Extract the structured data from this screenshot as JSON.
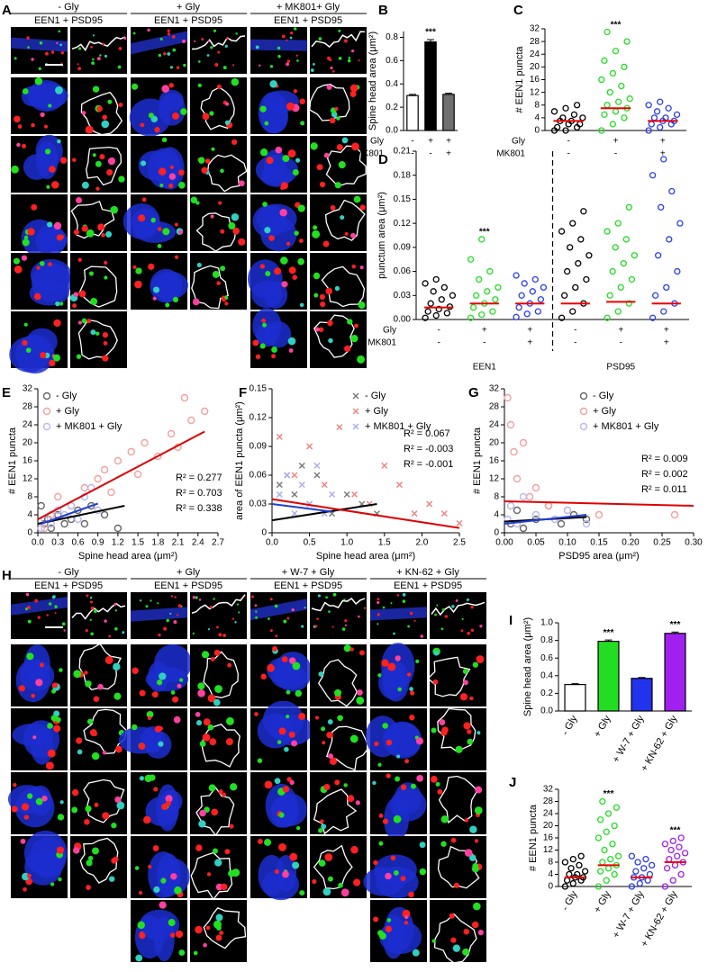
{
  "panels": {
    "A": {
      "letter": "A",
      "groups": [
        {
          "condition": "- Gly",
          "stain": "EEN1 + PSD95"
        },
        {
          "condition": "+ Gly",
          "stain": "EEN1 + PSD95"
        },
        {
          "condition": "+ MK801+ Gly",
          "stain": "EEN1 + PSD95"
        }
      ]
    },
    "H": {
      "letter": "H",
      "groups": [
        {
          "condition": "- Gly",
          "stain": "EEN1 + PSD95"
        },
        {
          "condition": "+ Gly",
          "stain": "EEN1 + PSD95"
        },
        {
          "condition": "+ W-7 + Gly",
          "stain": "EEN1 + PSD95"
        },
        {
          "condition": "+ KN-62 + Gly",
          "stain": "EEN1 + PSD95"
        }
      ]
    }
  },
  "chart_data": [
    {
      "type": "bar",
      "letter": "B",
      "ylabel": "Spine head area (μm²)",
      "values": [
        0.3,
        0.76,
        0.31
      ],
      "errors": [
        0.01,
        0.02,
        0.01
      ],
      "colors": [
        "#ffffff",
        "#000000",
        "#707070"
      ],
      "ylim": [
        0,
        0.85
      ],
      "yticks": [
        {
          "value": 0,
          "label": "0.0"
        },
        0.2,
        0.4,
        0.6,
        0.8
      ],
      "conditions": [
        {
          "label": "Gly",
          "values": [
            "-",
            "+",
            "+"
          ]
        },
        {
          "label": "MK801",
          "values": [
            "-",
            "-",
            "+"
          ]
        }
      ],
      "significance": [
        {
          "index": 1,
          "text": "***"
        }
      ]
    },
    {
      "type": "strip",
      "letter": "C",
      "ylabel": "# EEN1 puncta",
      "series": [
        {
          "color": "#000000",
          "mean": 3,
          "values": [
            0,
            0,
            1,
            1,
            2,
            2,
            3,
            3,
            4,
            4,
            5,
            6,
            7,
            8
          ]
        },
        {
          "color": "#22dd22",
          "mean": 7,
          "values": [
            0,
            2,
            4,
            5,
            6,
            7,
            8,
            9,
            10,
            12,
            14,
            16,
            18,
            20,
            22,
            25,
            28,
            31
          ]
        },
        {
          "color": "#2a3ee8",
          "mean": 3,
          "values": [
            0,
            1,
            2,
            2,
            3,
            3,
            4,
            4,
            5,
            6,
            7,
            8,
            9
          ]
        }
      ],
      "mean_color": "#ee0000",
      "ylim": [
        0,
        32
      ],
      "yticks": [
        0,
        4,
        8,
        12,
        16,
        20,
        24,
        28,
        32
      ],
      "conditions": [
        {
          "label": "Gly",
          "values": [
            "-",
            "+",
            "+"
          ]
        },
        {
          "label": "MK801",
          "values": [
            "-",
            "-",
            "+"
          ]
        }
      ],
      "significance": [
        {
          "index": 1,
          "text": "***"
        }
      ]
    },
    {
      "type": "strip",
      "letter": "D",
      "ylabel": "punctum area (μm²)",
      "series": [
        {
          "color": "#000000",
          "mean": 0.015,
          "values": [
            0.002,
            0.005,
            0.008,
            0.01,
            0.013,
            0.016,
            0.02,
            0.025,
            0.03,
            0.035,
            0.04,
            0.045,
            0.05
          ]
        },
        {
          "color": "#22dd22",
          "mean": 0.02,
          "values": [
            0.002,
            0.006,
            0.01,
            0.015,
            0.02,
            0.025,
            0.03,
            0.035,
            0.04,
            0.05,
            0.06,
            0.075,
            0.1
          ]
        },
        {
          "color": "#2a3ee8",
          "mean": 0.02,
          "values": [
            0.003,
            0.007,
            0.01,
            0.015,
            0.02,
            0.025,
            0.03,
            0.035,
            0.04,
            0.045,
            0.05,
            0.055
          ]
        },
        {
          "color": "#000000",
          "mean": 0.02,
          "values": [
            0.002,
            0.01,
            0.02,
            0.03,
            0.04,
            0.05,
            0.06,
            0.07,
            0.08,
            0.09,
            0.1,
            0.11,
            0.12,
            0.135
          ]
        },
        {
          "color": "#22dd22",
          "mean": 0.022,
          "values": [
            0.002,
            0.01,
            0.02,
            0.03,
            0.04,
            0.05,
            0.06,
            0.07,
            0.08,
            0.09,
            0.1,
            0.11,
            0.12,
            0.14
          ]
        },
        {
          "color": "#2a3ee8",
          "mean": 0.02,
          "values": [
            0.002,
            0.01,
            0.02,
            0.03,
            0.04,
            0.06,
            0.08,
            0.1,
            0.12,
            0.14,
            0.16,
            0.18,
            0.2
          ]
        }
      ],
      "mean_color": "#ee0000",
      "ylim": [
        0,
        0.21
      ],
      "yticks": [
        {
          "value": 0,
          "label": "0.00"
        },
        0.03,
        0.06,
        0.09,
        0.12,
        0.15,
        0.18,
        0.21
      ],
      "conditions": [
        {
          "label": "Gly",
          "values": [
            "-",
            "+",
            "+",
            "-",
            "+",
            "+"
          ]
        },
        {
          "label": "MK801",
          "values": [
            "-",
            "-",
            "+",
            "-",
            "-",
            "+"
          ]
        }
      ],
      "groups": [
        {
          "label": "EEN1",
          "span": [
            0,
            2
          ]
        },
        {
          "label": "PSD95",
          "span": [
            3,
            5
          ]
        }
      ],
      "divider_after": 2,
      "significance": [
        {
          "index": 1,
          "text": "***"
        }
      ]
    },
    {
      "type": "scatter",
      "letter": "E",
      "ylabel": "# EEN1 puncta",
      "xlabel": "Spine head area (μm²)",
      "series": [
        {
          "name": "- Gly",
          "color": "#666666",
          "marker": "o",
          "fit_color": "#000000",
          "x": [
            0.05,
            0.1,
            0.15,
            0.2,
            0.3,
            0.4,
            0.5,
            0.6,
            0.7,
            0.8,
            1.0,
            1.2
          ],
          "y": [
            6,
            2,
            3,
            1,
            4,
            2,
            3,
            5,
            2,
            6,
            4,
            1
          ],
          "fit": {
            "x": [
              0,
              1.3
            ],
            "y": [
              2,
              6
            ]
          }
        },
        {
          "name": "+ Gly",
          "color": "#f4a0a0",
          "marker": "o",
          "fit_color": "#dd0000",
          "x": [
            0.1,
            0.2,
            0.3,
            0.5,
            0.7,
            0.9,
            1.0,
            1.1,
            1.2,
            1.4,
            1.5,
            1.6,
            1.8,
            2.0,
            2.1,
            2.2,
            2.3,
            2.5
          ],
          "y": [
            1,
            4,
            8,
            6,
            10,
            12,
            14,
            9,
            16,
            18,
            13,
            20,
            17,
            22,
            19,
            30,
            25,
            27
          ],
          "fit": {
            "x": [
              0,
              2.5
            ],
            "y": [
              3,
              22.5
            ]
          }
        },
        {
          "name": "+ MK801 + Gly",
          "color": "#b8b8f0",
          "marker": "o",
          "fit_color": "#1f3fd8",
          "x": [
            0.05,
            0.1,
            0.2,
            0.3,
            0.4,
            0.5,
            0.6,
            0.7,
            0.8,
            0.9
          ],
          "y": [
            1,
            3,
            2,
            5,
            4,
            6,
            3,
            8,
            10,
            5
          ],
          "fit": {
            "x": [
              0.05,
              0.9
            ],
            "y": [
              2,
              6.5
            ]
          }
        }
      ],
      "annotations": [
        {
          "text": "R² = 0.277",
          "color": "#000000"
        },
        {
          "text": "R² = 0.703",
          "color": "#ff0000"
        },
        {
          "text": "R² = 0.338",
          "color": "#0000ff"
        }
      ],
      "xlim": [
        0,
        2.7
      ],
      "xticks": [
        {
          "value": 0,
          "label": "0.0"
        },
        0.3,
        0.6,
        0.9,
        1.2,
        1.5,
        1.8,
        2.1,
        2.4,
        2.7
      ],
      "ylim": [
        0,
        32
      ],
      "yticks": [
        0,
        4,
        8,
        12,
        16,
        20,
        24,
        28,
        32
      ]
    },
    {
      "type": "scatter",
      "letter": "F",
      "ylabel": "area of EEN1 puncta (μm²)",
      "xlabel": "Spine head area (μm²)",
      "series": [
        {
          "name": "- Gly",
          "color": "#777777",
          "marker": "x",
          "fit_color": "#000000",
          "x": [
            0.1,
            0.2,
            0.3,
            0.4,
            0.5,
            0.6,
            0.8,
            1.0,
            1.2,
            1.4
          ],
          "y": [
            0.05,
            0.06,
            0.04,
            0.07,
            0.03,
            0.06,
            0.02,
            0.04,
            0.03,
            0.02
          ],
          "fit": {
            "x": [
              0,
              1.4
            ],
            "y": [
              0.013,
              0.03
            ]
          }
        },
        {
          "name": "+ Gly",
          "color": "#f08080",
          "marker": "x",
          "fit_color": "#dd0000",
          "x": [
            0.1,
            0.3,
            0.5,
            0.7,
            0.9,
            1.1,
            1.3,
            1.5,
            1.7,
            1.9,
            2.1,
            2.3,
            2.5
          ],
          "y": [
            0.1,
            0.06,
            0.09,
            0.05,
            0.11,
            0.04,
            0.03,
            0.07,
            0.05,
            0.02,
            0.03,
            0.02,
            0.01
          ],
          "fit": {
            "x": [
              0,
              2.5
            ],
            "y": [
              0.035,
              0.005
            ]
          }
        },
        {
          "name": "+ MK801 + Gly",
          "color": "#a8a8f0",
          "marker": "x",
          "fit_color": "#1f3fd8",
          "x": [
            0.1,
            0.2,
            0.3,
            0.4,
            0.5,
            0.6,
            0.7,
            0.8
          ],
          "y": [
            0.04,
            0.06,
            0.02,
            0.05,
            0.03,
            0.07,
            0.02,
            0.04
          ],
          "fit": {
            "x": [
              0,
              0.8
            ],
            "y": [
              0.03,
              0.022
            ]
          }
        }
      ],
      "annotations": [
        {
          "text": "R² = 0.067",
          "color": "#000000"
        },
        {
          "text": "R² = -0.003",
          "color": "#ff0000"
        },
        {
          "text": "R² = -0.001",
          "color": "#0000ff"
        }
      ],
      "xlim": [
        0,
        2.5
      ],
      "xticks": [
        {
          "value": 0,
          "label": "0.0"
        },
        0.5,
        {
          "value": 1,
          "label": "1.0"
        },
        1.5,
        {
          "value": 2,
          "label": "2.0"
        },
        2.5
      ],
      "ylim": [
        0,
        0.15
      ],
      "yticks": [
        0,
        0.03,
        0.06,
        0.09,
        0.12,
        0.15
      ]
    },
    {
      "type": "scatter",
      "letter": "G",
      "ylabel": "# EEN1 puncta",
      "xlabel": "PSD95 area (μm²)",
      "series": [
        {
          "name": "- Gly",
          "color": "#666666",
          "marker": "o",
          "fit_color": "#000000",
          "x": [
            0.01,
            0.02,
            0.03,
            0.05,
            0.07,
            0.09,
            0.11,
            0.13
          ],
          "y": [
            2,
            5,
            1,
            3,
            6,
            2,
            4,
            3
          ],
          "fit": {
            "x": [
              0,
              0.13
            ],
            "y": [
              2.5,
              3.5
            ]
          }
        },
        {
          "name": "+ Gly",
          "color": "#f4a0a0",
          "marker": "o",
          "fit_color": "#dd0000",
          "x": [
            0.005,
            0.01,
            0.015,
            0.02,
            0.03,
            0.04,
            0.05,
            0.07,
            0.1,
            0.15,
            0.27
          ],
          "y": [
            30,
            24,
            18,
            12,
            20,
            8,
            10,
            6,
            5,
            4,
            4
          ],
          "fit": {
            "x": [
              0,
              0.3
            ],
            "y": [
              7,
              6
            ]
          }
        },
        {
          "name": "+ MK801 + Gly",
          "color": "#b8b8f0",
          "marker": "o",
          "fit_color": "#1f3fd8",
          "x": [
            0.005,
            0.01,
            0.02,
            0.03,
            0.05,
            0.08,
            0.1,
            0.13
          ],
          "y": [
            3,
            6,
            2,
            8,
            4,
            3,
            5,
            2
          ],
          "fit": {
            "x": [
              0,
              0.13
            ],
            "y": [
              2,
              4
            ]
          }
        }
      ],
      "annotations": [
        {
          "text": "R² = 0.009",
          "color": "#000000"
        },
        {
          "text": "R² = 0.002",
          "color": "#ff0000"
        },
        {
          "text": "R² = 0.011",
          "color": "#0000ff"
        }
      ],
      "xlim": [
        0,
        0.3
      ],
      "xticks": [
        {
          "value": 0,
          "label": "0.00"
        },
        0.05,
        {
          "value": 0.1,
          "label": "0.10"
        },
        0.15,
        {
          "value": 0.2,
          "label": "0.20"
        },
        0.25,
        {
          "value": 0.3,
          "label": "0.30"
        }
      ],
      "ylim": [
        0,
        32
      ],
      "yticks": [
        0,
        4,
        8,
        12,
        16,
        20,
        24,
        28,
        32
      ]
    },
    {
      "type": "bar",
      "letter": "I",
      "ylabel": "Spine head area (μm²)",
      "categories": [
        "- Gly",
        "+ Gly",
        "+ W-7 + Gly",
        "+ KN-62 + Gly"
      ],
      "values": [
        0.3,
        0.79,
        0.37,
        0.88
      ],
      "errors": [
        0.01,
        0.015,
        0.01,
        0.015
      ],
      "colors": [
        "#ffffff",
        "#22dd22",
        "#2233ee",
        "#a020f0"
      ],
      "ylim": [
        0,
        1.0
      ],
      "yticks": [
        {
          "value": 0,
          "label": "0.0"
        },
        0.2,
        0.4,
        0.6,
        0.8,
        {
          "value": 1,
          "label": "1.0"
        }
      ],
      "significance": [
        {
          "index": 1,
          "text": "***"
        },
        {
          "index": 3,
          "text": "***"
        }
      ]
    },
    {
      "type": "strip",
      "letter": "J",
      "ylabel": "# EEN1 puncta",
      "categories": [
        "- Gly",
        "+ Gly",
        "+ W-7 + Gly",
        "+ KN-62 + Gly"
      ],
      "series": [
        {
          "color": "#000000",
          "mean": 3,
          "values": [
            0,
            1,
            2,
            2,
            3,
            3,
            4,
            4,
            5,
            6,
            7,
            8,
            9,
            10
          ]
        },
        {
          "color": "#22dd22",
          "mean": 7,
          "values": [
            0,
            2,
            4,
            5,
            6,
            7,
            8,
            9,
            10,
            12,
            14,
            16,
            18,
            20,
            22,
            24,
            26,
            28
          ]
        },
        {
          "color": "#2a3ee8",
          "mean": 3,
          "values": [
            0,
            1,
            2,
            3,
            3,
            4,
            5,
            6,
            7,
            8,
            9,
            10
          ]
        },
        {
          "color": "#a020f0",
          "mean": 8,
          "values": [
            0,
            2,
            4,
            6,
            7,
            8,
            9,
            10,
            11,
            12,
            13,
            14,
            15,
            16
          ]
        }
      ],
      "mean_color": "#ee0000",
      "ylim": [
        0,
        32
      ],
      "yticks": [
        0,
        4,
        8,
        12,
        16,
        20,
        24,
        28,
        32
      ],
      "significance": [
        {
          "index": 1,
          "text": "***"
        },
        {
          "index": 3,
          "text": "***"
        }
      ]
    }
  ]
}
